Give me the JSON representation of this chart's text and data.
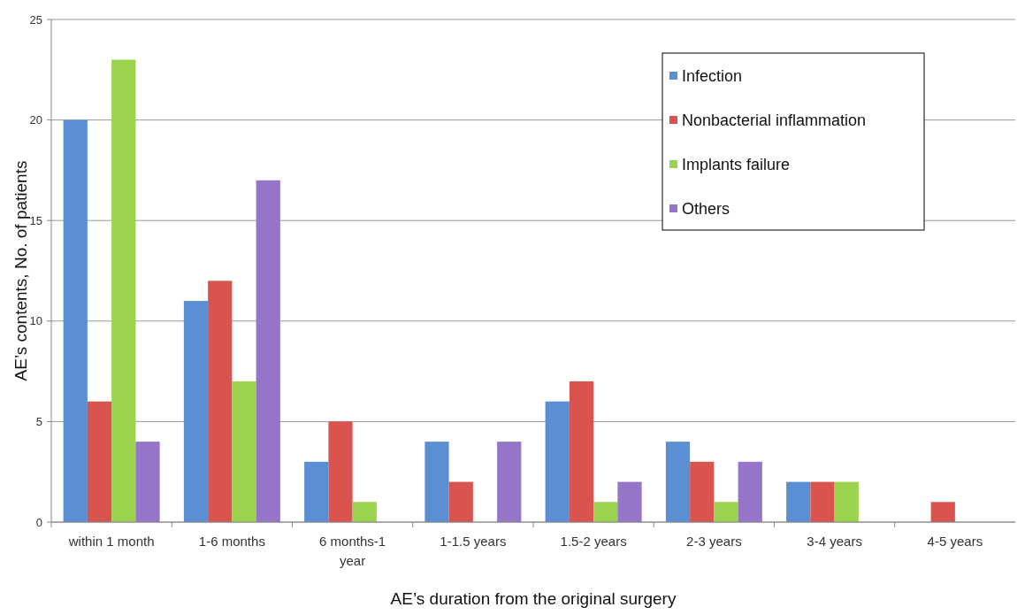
{
  "chart_data": {
    "type": "bar",
    "xlabel": "AE’s duration from the original surgery",
    "ylabel": "AE’s contents, No. of patients",
    "categories": [
      "within 1 month",
      "1-6 months",
      "6 months-1 year",
      "1-1.5 years",
      "1.5-2 years",
      "2-3 years",
      "3-4 years",
      "4-5 years"
    ],
    "series": [
      {
        "name": "Infection",
        "color": "#5b8fd4",
        "values": [
          20,
          11,
          3,
          4,
          6,
          4,
          2,
          0
        ]
      },
      {
        "name": "Nonbacterial inflammation",
        "color": "#d9534f",
        "values": [
          6,
          12,
          5,
          2,
          7,
          3,
          2,
          1
        ]
      },
      {
        "name": "Implants failure",
        "color": "#9bd34f",
        "values": [
          23,
          7,
          1,
          0,
          1,
          1,
          2,
          0
        ]
      },
      {
        "name": "Others",
        "color": "#9575c9",
        "values": [
          4,
          17,
          0,
          4,
          2,
          3,
          0,
          0
        ]
      }
    ],
    "ylim": [
      0,
      25
    ],
    "yticks": [
      0,
      5,
      10,
      15,
      20,
      25
    ],
    "grid": "y",
    "legend": "top right"
  }
}
